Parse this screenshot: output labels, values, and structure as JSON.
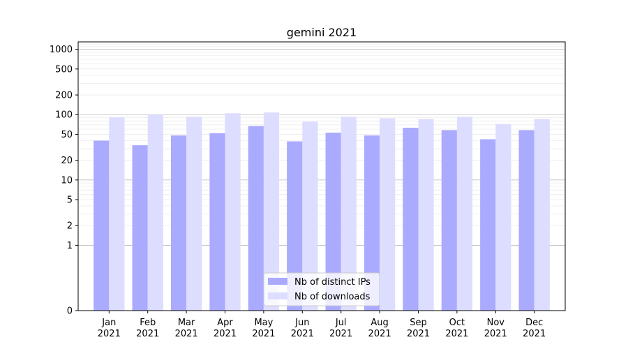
{
  "chart_data": {
    "type": "bar",
    "title": "gemini 2021",
    "xlabel": "",
    "ylabel": "",
    "y_scale": "symlog",
    "ylim": [
      0,
      1300
    ],
    "y_ticks": [
      0,
      1,
      2,
      5,
      10,
      20,
      50,
      100,
      200,
      500,
      1000
    ],
    "y_tick_labels": [
      "0",
      "1",
      "2",
      "5",
      "10",
      "20",
      "50",
      "100",
      "200",
      "500",
      "1000"
    ],
    "grid": true,
    "legend_position": "lower center",
    "categories": [
      [
        "Jan",
        "2021"
      ],
      [
        "Feb",
        "2021"
      ],
      [
        "Mar",
        "2021"
      ],
      [
        "Apr",
        "2021"
      ],
      [
        "May",
        "2021"
      ],
      [
        "Jun",
        "2021"
      ],
      [
        "Jul",
        "2021"
      ],
      [
        "Aug",
        "2021"
      ],
      [
        "Sep",
        "2021"
      ],
      [
        "Oct",
        "2021"
      ],
      [
        "Nov",
        "2021"
      ],
      [
        "Dec",
        "2021"
      ]
    ],
    "series": [
      {
        "name": "Nb of distinct IPs",
        "color": "#aaaaff",
        "values": [
          40,
          34,
          48,
          52,
          67,
          39,
          53,
          48,
          63,
          58,
          42,
          58
        ]
      },
      {
        "name": "Nb of downloads",
        "color": "#ddddff",
        "values": [
          91,
          100,
          93,
          105,
          108,
          78,
          93,
          88,
          86,
          93,
          72,
          86
        ]
      }
    ]
  }
}
